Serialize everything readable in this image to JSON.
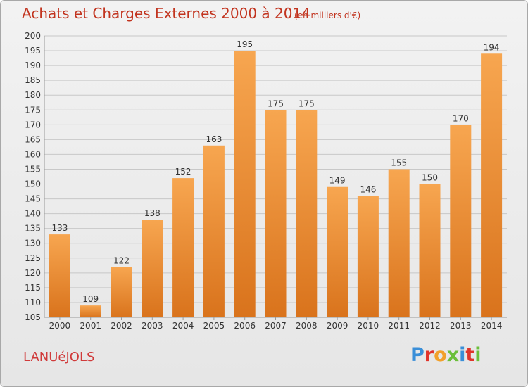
{
  "header": {
    "title": "Achats et Charges Externes 2000 à 2014",
    "subtitle": "(en milliers d'€)"
  },
  "footer": {
    "commune": "LANUéJOLS",
    "logo": "Proxiti",
    "logo_colors": [
      "#3a8fd8",
      "#e0342b",
      "#f2a02a",
      "#6bbf3a",
      "#3a8fd8",
      "#e0342b",
      "#6bbf3a"
    ]
  },
  "colors": {
    "bar_top": "#f7a650",
    "bar_bottom": "#d9731c",
    "grid": "#c8c8c8",
    "title": "#c2341f"
  },
  "chart_data": {
    "type": "bar",
    "categories": [
      "2000",
      "2001",
      "2002",
      "2003",
      "2004",
      "2005",
      "2006",
      "2007",
      "2008",
      "2009",
      "2010",
      "2011",
      "2012",
      "2013",
      "2014"
    ],
    "values": [
      133,
      109,
      122,
      138,
      152,
      163,
      195,
      175,
      175,
      149,
      146,
      155,
      150,
      170,
      194
    ],
    "ylim": [
      105,
      200
    ],
    "yticks": [
      105,
      110,
      115,
      120,
      125,
      130,
      135,
      140,
      145,
      150,
      155,
      160,
      165,
      170,
      175,
      180,
      185,
      190,
      195,
      200
    ],
    "grid": true,
    "title": "Achats et Charges Externes 2000 à 2014",
    "subtitle": "(en milliers d'€)",
    "xlabel": "",
    "ylabel": ""
  }
}
